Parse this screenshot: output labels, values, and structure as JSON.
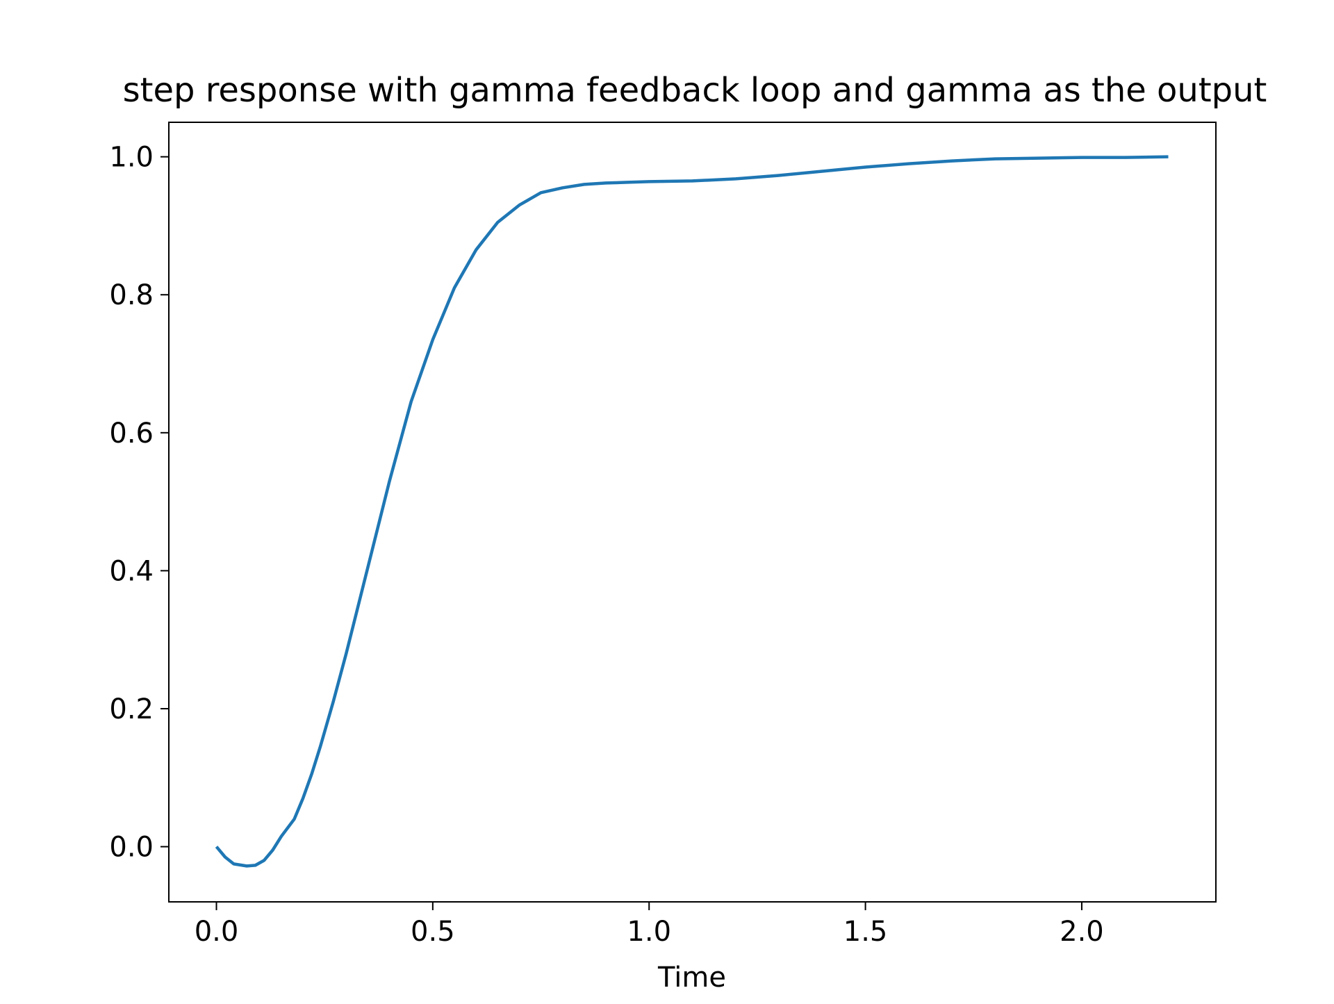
{
  "chart_data": {
    "type": "line",
    "title": "step response with gamma feedback loop and gamma as the output",
    "xlabel": "Time",
    "ylabel": "",
    "xlim": [
      -0.11,
      2.31
    ],
    "ylim": [
      -0.08,
      1.05
    ],
    "xticks": [
      0.0,
      0.5,
      1.0,
      1.5,
      2.0
    ],
    "xtick_labels": [
      "0.0",
      "0.5",
      "1.0",
      "1.5",
      "2.0"
    ],
    "yticks": [
      0.0,
      0.2,
      0.4,
      0.6,
      0.8,
      1.0
    ],
    "ytick_labels": [
      "0.0",
      "0.2",
      "0.4",
      "0.6",
      "0.8",
      "1.0"
    ],
    "grid": false,
    "line_color": "#1f77b4",
    "series": [
      {
        "x": [
          0.0,
          0.02,
          0.04,
          0.07,
          0.09,
          0.11,
          0.13,
          0.15,
          0.18,
          0.2,
          0.22,
          0.24,
          0.27,
          0.3,
          0.33,
          0.36,
          0.4,
          0.45,
          0.5,
          0.55,
          0.6,
          0.65,
          0.7,
          0.75,
          0.8,
          0.85,
          0.9,
          0.95,
          1.0,
          1.1,
          1.2,
          1.3,
          1.4,
          1.5,
          1.6,
          1.7,
          1.8,
          1.9,
          2.0,
          2.1,
          2.2
        ],
        "y": [
          0.0,
          -0.015,
          -0.025,
          -0.028,
          -0.027,
          -0.02,
          -0.005,
          0.015,
          0.04,
          0.07,
          0.105,
          0.145,
          0.21,
          0.28,
          0.355,
          0.43,
          0.53,
          0.645,
          0.735,
          0.81,
          0.865,
          0.905,
          0.93,
          0.948,
          0.955,
          0.96,
          0.962,
          0.963,
          0.964,
          0.965,
          0.968,
          0.973,
          0.979,
          0.985,
          0.99,
          0.994,
          0.997,
          0.998,
          0.999,
          0.999,
          1.0
        ]
      }
    ]
  }
}
